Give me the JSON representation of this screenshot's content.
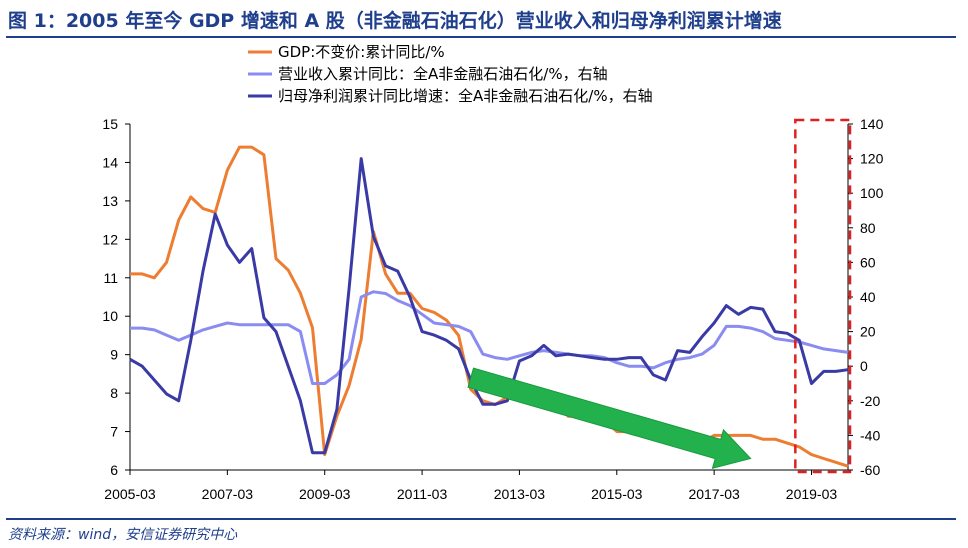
{
  "figure": {
    "title": "图 1：2005 年至今 GDP 增速和 A 股（非金融石油石化）营业收入和归母净利润累计增速",
    "source": "资料来源：wind，安信证券研究中心"
  },
  "chart_data": {
    "type": "line",
    "x": [
      "2005-03",
      "2005-06",
      "2005-09",
      "2005-12",
      "2006-03",
      "2006-06",
      "2006-09",
      "2006-12",
      "2007-03",
      "2007-06",
      "2007-09",
      "2007-12",
      "2008-03",
      "2008-06",
      "2008-09",
      "2008-12",
      "2009-03",
      "2009-06",
      "2009-09",
      "2009-12",
      "2010-03",
      "2010-06",
      "2010-09",
      "2010-12",
      "2011-03",
      "2011-06",
      "2011-09",
      "2011-12",
      "2012-03",
      "2012-06",
      "2012-09",
      "2012-12",
      "2013-03",
      "2013-06",
      "2013-09",
      "2013-12",
      "2014-03",
      "2014-06",
      "2014-09",
      "2014-12",
      "2015-03",
      "2015-06",
      "2015-09",
      "2015-12",
      "2016-03",
      "2016-06",
      "2016-09",
      "2016-12",
      "2017-03",
      "2017-06",
      "2017-09",
      "2017-12",
      "2018-03",
      "2018-06",
      "2018-09",
      "2018-12",
      "2019-03",
      "2019-06",
      "2019-09",
      "2019-12"
    ],
    "x_tick_labels": [
      "2005-03",
      "2007-03",
      "2009-03",
      "2011-03",
      "2013-03",
      "2015-03",
      "2017-03",
      "2019-03"
    ],
    "y_left": {
      "min": 6,
      "max": 15,
      "ticks": [
        6,
        7,
        8,
        9,
        10,
        11,
        12,
        13,
        14,
        15
      ]
    },
    "y_right": {
      "min": -60,
      "max": 140,
      "ticks": [
        -60,
        -40,
        -20,
        0,
        20,
        40,
        60,
        80,
        100,
        120,
        140
      ]
    },
    "series": [
      {
        "name": "GDP:不变价:累计同比/%",
        "axis": "left",
        "color": "#ed7d31",
        "values": [
          11.1,
          11.1,
          11.0,
          11.4,
          12.5,
          13.1,
          12.8,
          12.7,
          13.8,
          14.4,
          14.4,
          14.2,
          11.5,
          11.2,
          10.6,
          9.7,
          6.4,
          7.4,
          8.2,
          9.4,
          12.2,
          11.1,
          10.6,
          10.6,
          10.2,
          10.1,
          9.9,
          9.5,
          8.1,
          7.8,
          7.7,
          7.9,
          7.9,
          7.7,
          7.8,
          7.8,
          7.4,
          7.4,
          7.3,
          7.3,
          7.0,
          7.0,
          6.9,
          6.9,
          6.7,
          6.7,
          6.7,
          6.7,
          6.9,
          6.9,
          6.9,
          6.9,
          6.8,
          6.8,
          6.7,
          6.6,
          6.4,
          6.3,
          6.2,
          6.1
        ]
      },
      {
        "name": "营业收入累计同比：全A非金融石油石化/%，右轴",
        "axis": "right",
        "color": "#8a8cf0",
        "values": [
          22,
          22,
          21,
          18,
          15,
          18,
          21,
          23,
          25,
          24,
          24,
          24,
          24,
          24,
          20,
          -10,
          -10,
          -5,
          4,
          40,
          43,
          42,
          38,
          35,
          30,
          25,
          24,
          23,
          20,
          7,
          5,
          4,
          6,
          8,
          9,
          8,
          7,
          6,
          6,
          5,
          2,
          0,
          0,
          -1,
          2,
          4,
          5,
          7,
          12,
          23,
          23,
          22,
          20,
          16,
          15,
          14,
          12,
          10,
          9,
          8
        ]
      },
      {
        "name": "归母净利润累计同比增速：全A非金融石油石化/%，右轴",
        "axis": "right",
        "color": "#3a3aa6",
        "values": [
          4,
          0,
          -8,
          -16,
          -20,
          15,
          55,
          88,
          70,
          60,
          68,
          28,
          20,
          0,
          -20,
          -50,
          -50,
          -25,
          45,
          120,
          75,
          58,
          55,
          40,
          20,
          18,
          15,
          10,
          -8,
          -22,
          -22,
          -20,
          3,
          6,
          12,
          6,
          7,
          6,
          5,
          4,
          4,
          5,
          5,
          -5,
          -8,
          9,
          8,
          17,
          25,
          35,
          30,
          34,
          33,
          20,
          19,
          15,
          -10,
          -3,
          -3,
          -2
        ]
      }
    ]
  },
  "annotations": {
    "highlight_box": "2019 dashed box",
    "trend_arrow": "downward trend arrow"
  }
}
